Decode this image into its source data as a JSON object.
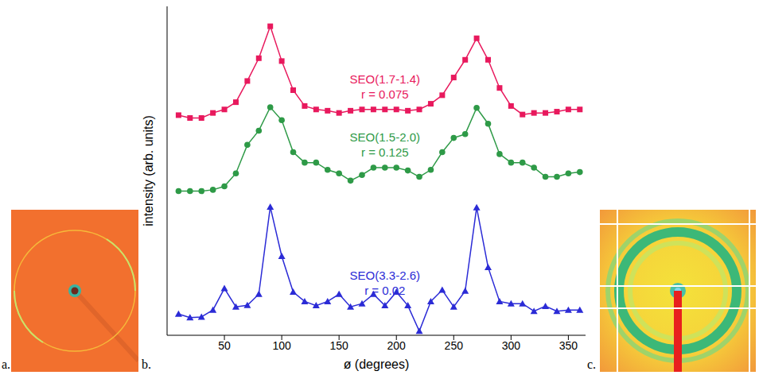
{
  "panels": [
    "a.",
    "b.",
    "c."
  ],
  "chart_data": {
    "type": "line",
    "x_label": "ø (degrees)",
    "y_label": "intensity (arb. units)",
    "tick_labels": "x",
    "x": [
      10,
      20,
      30,
      40,
      50,
      60,
      70,
      80,
      90,
      100,
      110,
      120,
      130,
      140,
      150,
      160,
      170,
      180,
      190,
      200,
      210,
      220,
      230,
      240,
      250,
      260,
      270,
      280,
      290,
      300,
      310,
      320,
      330,
      340,
      350,
      360
    ],
    "xlim": [
      0,
      365
    ],
    "xticks": [
      50,
      100,
      150,
      200,
      250,
      300,
      350
    ],
    "ylim": [
      -0.4,
      10
    ],
    "series": [
      {
        "name": "SEO(1.7-1.4)",
        "r_label": "r = 0.075",
        "color": "#e8195d",
        "marker": "square",
        "values": [
          6.56,
          6.47,
          6.47,
          6.63,
          6.74,
          6.97,
          7.64,
          8.36,
          9.37,
          8.27,
          7.35,
          6.85,
          6.74,
          6.7,
          6.63,
          6.7,
          6.74,
          6.74,
          6.74,
          6.74,
          6.7,
          6.74,
          6.92,
          7.19,
          7.75,
          8.31,
          8.99,
          8.31,
          7.42,
          6.85,
          6.58,
          6.63,
          6.63,
          6.67,
          6.74,
          6.74
        ]
      },
      {
        "name": "SEO(1.5-2.0)",
        "r_label": "r = 0.125",
        "color": "#2e9a47",
        "marker": "circle",
        "values": [
          4.16,
          4.16,
          4.16,
          4.2,
          4.31,
          4.72,
          5.62,
          6.07,
          6.81,
          6.4,
          5.39,
          5.06,
          5.06,
          4.83,
          4.72,
          4.49,
          4.67,
          4.9,
          4.9,
          4.9,
          4.81,
          4.61,
          4.83,
          5.39,
          5.84,
          5.96,
          6.79,
          6.29,
          5.33,
          5.06,
          5.06,
          4.9,
          4.61,
          4.61,
          4.72,
          4.76
        ]
      },
      {
        "name": "SEO(3.3-2.6)",
        "r_label": "r = 0.02",
        "color": "#2b2bd6",
        "marker": "triangle",
        "values": [
          0.27,
          0.16,
          0.18,
          0.4,
          1.08,
          0.5,
          0.55,
          0.9,
          3.66,
          2.1,
          0.97,
          0.67,
          0.54,
          0.67,
          0.9,
          0.5,
          0.6,
          0.9,
          0.54,
          0.97,
          0.54,
          -0.27,
          0.67,
          1.03,
          0.5,
          1.0,
          3.64,
          1.75,
          0.67,
          0.6,
          0.6,
          0.36,
          0.52,
          0.36,
          0.4,
          0.4
        ]
      }
    ]
  }
}
